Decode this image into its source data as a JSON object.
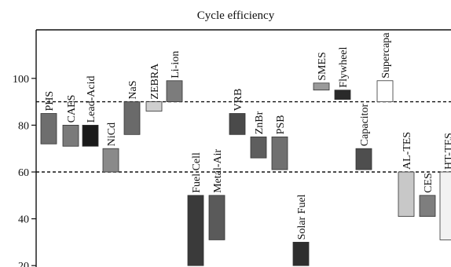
{
  "chart_data": {
    "type": "bar",
    "title": "Cycle efficiency",
    "xlabel": "",
    "ylabel": "",
    "ylim": [
      20,
      120
    ],
    "yticks": [
      20,
      40,
      60,
      80,
      100
    ],
    "reference_lines": [
      60,
      90
    ],
    "grid": false,
    "legend": "none",
    "bars": [
      {
        "label": "PHS",
        "low": 72,
        "high": 85,
        "color": "#6e6e6e",
        "label_pos": "above"
      },
      {
        "label": "CAES",
        "low": 71,
        "high": 80,
        "color": "#7a7a7a",
        "label_pos": "above"
      },
      {
        "label": "Lead-Acid",
        "low": 71,
        "high": 80,
        "color": "#1a1a1a",
        "label_pos": "above"
      },
      {
        "label": "NiCd",
        "low": 60,
        "high": 70,
        "color": "#8a8a8a",
        "label_pos": "above"
      },
      {
        "label": "NaS",
        "low": 76,
        "high": 90,
        "color": "#6a6a6a",
        "label_pos": "above"
      },
      {
        "label": "ZEBRA",
        "low": 86,
        "high": 90,
        "color": "#cfcfcf",
        "label_pos": "above"
      },
      {
        "label": "Li-ion",
        "low": 90,
        "high": 99,
        "color": "#7c7c7c",
        "label_pos": "above"
      },
      {
        "label": "Fuel Cell",
        "low": 20,
        "high": 50,
        "color": "#3a3a3a",
        "label_pos": "below"
      },
      {
        "label": "Metal-Air",
        "low": 31,
        "high": 50,
        "color": "#5a5a5a",
        "label_pos": "below"
      },
      {
        "label": "VRB",
        "low": 76,
        "high": 85,
        "color": "#4a4a4a",
        "label_pos": "above"
      },
      {
        "label": "ZnBr",
        "low": 66,
        "high": 75,
        "color": "#5e5e5e",
        "label_pos": "above"
      },
      {
        "label": "PSB",
        "low": 61,
        "high": 75,
        "color": "#707070",
        "label_pos": "above"
      },
      {
        "label": "Solar Fuel",
        "low": 20,
        "high": 30,
        "color": "#2e2e2e",
        "label_pos": "below"
      },
      {
        "label": "SMES",
        "low": 95,
        "high": 98,
        "color": "#9a9a9a",
        "label_pos": "above"
      },
      {
        "label": "Flywheel",
        "low": 91,
        "high": 95,
        "color": "#2a2a2a",
        "label_pos": "above"
      },
      {
        "label": "Capacitor",
        "low": 61,
        "high": 70,
        "color": "#4e4e4e",
        "label_pos": "above"
      },
      {
        "label": "Supercapa",
        "low": 90,
        "high": 99,
        "color": "#ffffff",
        "label_pos": "above"
      },
      {
        "label": "AL-TES",
        "low": 41,
        "high": 60,
        "color": "#c8c8c8",
        "label_pos": "above"
      },
      {
        "label": "CES",
        "low": 41,
        "high": 50,
        "color": "#7e7e7e",
        "label_pos": "above"
      },
      {
        "label": "HT-TES",
        "low": 31,
        "high": 60,
        "color": "#f2f2f2",
        "label_pos": "above"
      }
    ]
  }
}
